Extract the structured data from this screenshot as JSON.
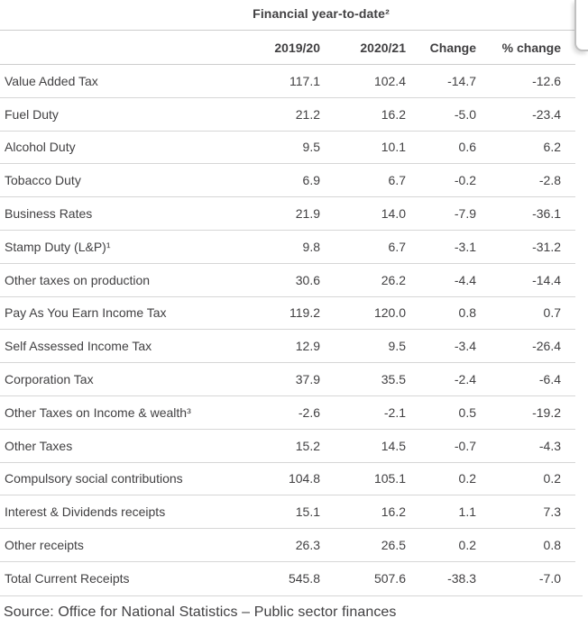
{
  "page": {
    "source_text": "Source: Office for National Statistics – Public sector finances"
  },
  "chart_data": {
    "type": "table",
    "title": "Financial year-to-date²",
    "columns": [
      "",
      "2019/20",
      "2020/21",
      "Change",
      "% change"
    ],
    "rows": [
      {
        "label": "Value Added Tax",
        "values": [
          "117.1",
          "102.4",
          "-14.7",
          "-12.6"
        ]
      },
      {
        "label": "Fuel Duty",
        "values": [
          "21.2",
          "16.2",
          "-5.0",
          "-23.4"
        ]
      },
      {
        "label": "Alcohol Duty",
        "values": [
          "9.5",
          "10.1",
          "0.6",
          "6.2"
        ]
      },
      {
        "label": "Tobacco Duty",
        "values": [
          "6.9",
          "6.7",
          "-0.2",
          "-2.8"
        ]
      },
      {
        "label": "Business Rates",
        "values": [
          "21.9",
          "14.0",
          "-7.9",
          "-36.1"
        ]
      },
      {
        "label": "Stamp Duty (L&P)¹",
        "values": [
          "9.8",
          "6.7",
          "-3.1",
          "-31.2"
        ]
      },
      {
        "label": "Other taxes on production",
        "values": [
          "30.6",
          "26.2",
          "-4.4",
          "-14.4"
        ]
      },
      {
        "label": "Pay As You Earn Income Tax",
        "values": [
          "119.2",
          "120.0",
          "0.8",
          "0.7"
        ]
      },
      {
        "label": "Self Assessed Income Tax",
        "values": [
          "12.9",
          "9.5",
          "-3.4",
          "-26.4"
        ]
      },
      {
        "label": "Corporation Tax",
        "values": [
          "37.9",
          "35.5",
          "-2.4",
          "-6.4"
        ]
      },
      {
        "label": "Other Taxes on Income & wealth³",
        "values": [
          "-2.6",
          "-2.1",
          "0.5",
          "-19.2"
        ]
      },
      {
        "label": "Other Taxes",
        "values": [
          "15.2",
          "14.5",
          "-0.7",
          "-4.3"
        ]
      },
      {
        "label": "Compulsory social contributions",
        "values": [
          "104.8",
          "105.1",
          "0.2",
          "0.2"
        ]
      },
      {
        "label": "Interest & Dividends receipts",
        "values": [
          "15.1",
          "16.2",
          "1.1",
          "7.3"
        ]
      },
      {
        "label": "Other receipts",
        "values": [
          "26.3",
          "26.5",
          "0.2",
          "0.8"
        ]
      },
      {
        "label": "Total Current Receipts",
        "values": [
          "545.8",
          "507.6",
          "-38.3",
          "-7.0"
        ]
      }
    ]
  },
  "colors": {
    "text": "#414042",
    "rule": "#cdcdcd",
    "row_rule": "#d6d6d6",
    "corner_border": "#c0c0c0"
  }
}
